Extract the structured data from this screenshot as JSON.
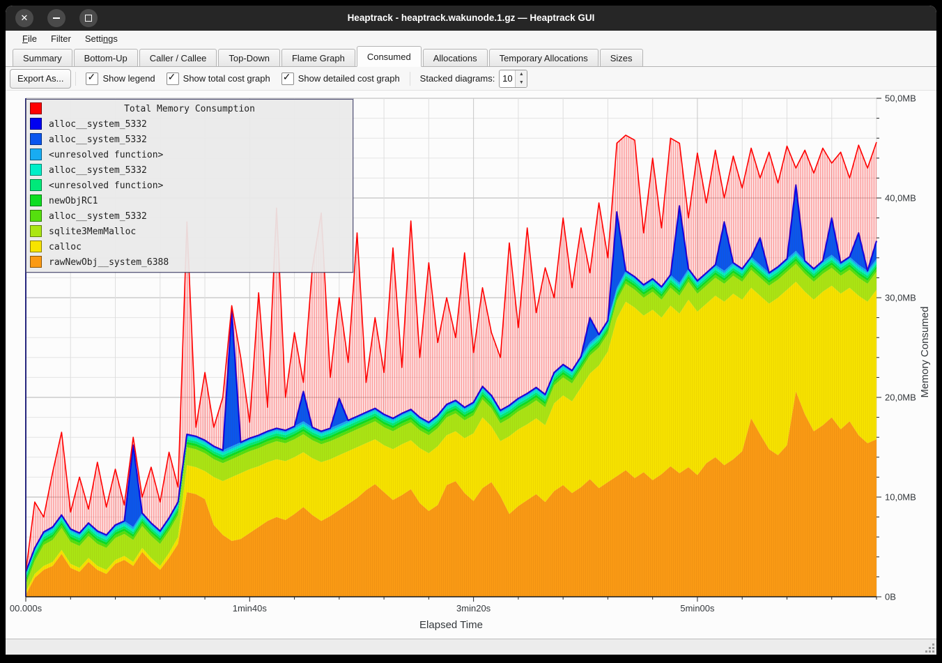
{
  "titlebar": {
    "title": "Heaptrack - heaptrack.wakunode.1.gz — Heaptrack GUI"
  },
  "menu": {
    "items": [
      {
        "pre": "",
        "accel": "F",
        "post": "ile"
      },
      {
        "pre": "Filter",
        "accel": "",
        "post": ""
      },
      {
        "pre": "Setti",
        "accel": "n",
        "post": "gs"
      }
    ]
  },
  "tabs": {
    "active_index": 5,
    "items": [
      {
        "label": "Summary"
      },
      {
        "label": "Bottom-Up"
      },
      {
        "label": "Caller / Callee"
      },
      {
        "label": "Top-Down"
      },
      {
        "label": "Flame Graph"
      },
      {
        "label": "Consumed"
      },
      {
        "label": "Allocations"
      },
      {
        "label": "Temporary Allocations"
      },
      {
        "label": "Sizes"
      }
    ]
  },
  "toolbar": {
    "export_label": "Export As...",
    "checkboxes": [
      {
        "label": "Show legend",
        "checked": true
      },
      {
        "label": "Show total cost graph",
        "checked": true
      },
      {
        "label": "Show detailed cost graph",
        "checked": true
      }
    ],
    "stacked_label": "Stacked diagrams:",
    "stacked_value": "10"
  },
  "statusbar": {
    "text": ""
  },
  "chart_data": {
    "type": "area",
    "stacked": true,
    "title": "Total Memory Consumption",
    "xlabel": "Elapsed Time",
    "ylabel": "Memory Consumed",
    "xlim": [
      0,
      380
    ],
    "ylim": [
      0,
      50
    ],
    "grid": {
      "x_minor_step_s": 20,
      "y_minor_step_mb": 2,
      "x_major_step_s": 100,
      "y_major_step_mb": 10
    },
    "legend_position": "top-left",
    "x_ticks": [
      {
        "pos": 0,
        "label": "00.000s"
      },
      {
        "pos": 100,
        "label": "1min40s"
      },
      {
        "pos": 200,
        "label": "3min20s"
      },
      {
        "pos": 300,
        "label": "5min00s"
      }
    ],
    "y_ticks": [
      {
        "pos": 0,
        "label": "0B"
      },
      {
        "pos": 10,
        "label": "10,0MB"
      },
      {
        "pos": 20,
        "label": "20,0MB"
      },
      {
        "pos": 30,
        "label": "30,0MB"
      },
      {
        "pos": 40,
        "label": "40,0MB"
      },
      {
        "pos": 50,
        "label": "50,0MB"
      }
    ],
    "series": [
      {
        "label": "Total Memory Consumption",
        "color": "#ff0000",
        "role": "total-line"
      },
      {
        "label": "alloc__system_5332",
        "color": "#0000f0",
        "role": "stack"
      },
      {
        "label": "alloc__system_5332",
        "color": "#0a56ee",
        "role": "stack"
      },
      {
        "label": "<unresolved function>",
        "color": "#18acf2",
        "role": "stack"
      },
      {
        "label": "alloc__system_5332",
        "color": "#00eec8",
        "role": "stack"
      },
      {
        "label": "<unresolved function>",
        "color": "#00e97a",
        "role": "stack"
      },
      {
        "label": "newObjRC1",
        "color": "#0ddd22",
        "role": "stack"
      },
      {
        "label": "alloc__system_5332",
        "color": "#55e00e",
        "role": "stack"
      },
      {
        "label": "sqlite3MemMalloc",
        "color": "#abe614",
        "role": "stack"
      },
      {
        "label": "calloc",
        "color": "#f7e400",
        "role": "stack"
      },
      {
        "label": "rawNewObj__system_6388",
        "color": "#fb9a14",
        "role": "stack"
      }
    ],
    "t_seconds": [
      0,
      4,
      8,
      12,
      16,
      20,
      24,
      28,
      32,
      36,
      40,
      44,
      48,
      52,
      56,
      60,
      64,
      68,
      72,
      76,
      80,
      84,
      88,
      92,
      96,
      100,
      104,
      108,
      112,
      116,
      120,
      124,
      128,
      132,
      136,
      140,
      144,
      148,
      152,
      156,
      160,
      164,
      168,
      172,
      176,
      180,
      184,
      188,
      192,
      196,
      200,
      204,
      208,
      212,
      216,
      220,
      224,
      228,
      232,
      236,
      240,
      244,
      248,
      252,
      256,
      260,
      264,
      268,
      272,
      276,
      280,
      284,
      288,
      292,
      296,
      300,
      304,
      308,
      312,
      316,
      320,
      324,
      328,
      332,
      336,
      340,
      344,
      348,
      352,
      356,
      360,
      364,
      368,
      372,
      376,
      380
    ],
    "stack_tops_mb": {
      "rawNewObj": [
        0.2,
        1.9,
        2.7,
        3.1,
        4.3,
        2.9,
        2.5,
        3.5,
        2.7,
        2.3,
        3.3,
        3.7,
        3.1,
        4.5,
        3.5,
        2.7,
        3.9,
        5.3,
        10.5,
        10.3,
        9.8,
        7.2,
        6.2,
        5.6,
        5.8,
        6.4,
        7.0,
        7.6,
        8.0,
        7.7,
        8.3,
        9.0,
        8.2,
        7.6,
        8.1,
        8.7,
        9.3,
        9.9,
        10.7,
        11.3,
        10.5,
        9.7,
        10.2,
        10.8,
        9.4,
        8.6,
        9.2,
        11.2,
        11.6,
        10.4,
        9.6,
        10.9,
        11.5,
        10.1,
        8.3,
        9.1,
        9.7,
        10.3,
        9.5,
        10.6,
        11.2,
        10.4,
        11.0,
        11.8,
        10.9,
        11.5,
        12.1,
        12.7,
        11.9,
        12.5,
        11.7,
        12.3,
        13.1,
        12.4,
        13.0,
        12.2,
        13.4,
        14.0,
        13.2,
        13.8,
        14.6,
        17.9,
        16.3,
        14.8,
        14.2,
        15.2,
        20.6,
        18.3,
        16.6,
        17.2,
        18.0,
        16.8,
        17.6,
        16.2,
        15.4,
        15.8
      ],
      "calloc": [
        0.5,
        2.3,
        3.1,
        3.5,
        4.7,
        3.3,
        2.9,
        3.9,
        3.1,
        2.7,
        3.7,
        4.1,
        3.5,
        4.9,
        3.9,
        3.1,
        4.4,
        6.0,
        13.2,
        13.0,
        12.6,
        12.0,
        11.6,
        12.0,
        12.4,
        12.8,
        13.1,
        13.5,
        13.8,
        13.6,
        14.0,
        14.5,
        13.9,
        13.5,
        13.8,
        14.2,
        14.6,
        15.0,
        15.4,
        15.8,
        15.2,
        14.8,
        15.3,
        15.7,
        14.9,
        14.4,
        15.1,
        16.2,
        16.6,
        15.9,
        16.4,
        18.0,
        17.1,
        15.6,
        16.1,
        16.8,
        17.3,
        17.9,
        17.2,
        19.4,
        20.2,
        19.6,
        21.0,
        22.4,
        23.2,
        24.6,
        27.9,
        29.6,
        29.0,
        28.2,
        28.8,
        28.0,
        29.2,
        28.4,
        29.8,
        28.6,
        29.4,
        30.2,
        29.6,
        30.4,
        29.8,
        31.0,
        30.2,
        29.4,
        30.0,
        30.8,
        31.6,
        30.6,
        29.8,
        30.6,
        31.2,
        30.4,
        31.0,
        30.2,
        29.6,
        30.8
      ],
      "sqlite": [
        1.2,
        3.6,
        5.2,
        5.7,
        6.9,
        5.5,
        5.1,
        6.1,
        5.3,
        4.9,
        5.9,
        6.3,
        5.7,
        7.1,
        6.1,
        5.3,
        6.6,
        8.2,
        15.0,
        14.8,
        14.4,
        13.8,
        13.4,
        13.8,
        14.2,
        14.6,
        14.9,
        15.3,
        15.6,
        15.4,
        15.8,
        16.3,
        15.7,
        15.3,
        15.6,
        16.0,
        16.4,
        16.8,
        17.2,
        17.6,
        17.0,
        16.6,
        17.1,
        17.5,
        16.7,
        16.2,
        16.9,
        18.0,
        18.4,
        17.7,
        18.2,
        19.8,
        18.9,
        17.4,
        17.9,
        18.6,
        19.1,
        19.7,
        19.0,
        21.2,
        22.0,
        21.4,
        22.8,
        24.2,
        25.0,
        26.4,
        29.7,
        31.4,
        30.8,
        30.0,
        30.6,
        29.8,
        31.0,
        30.2,
        31.6,
        30.4,
        31.2,
        32.0,
        31.4,
        32.2,
        31.6,
        32.8,
        32.0,
        31.2,
        31.8,
        32.6,
        33.4,
        32.4,
        31.6,
        32.4,
        33.0,
        32.2,
        32.8,
        32.0,
        31.4,
        32.6
      ],
      "blue": [
        2.5,
        4.9,
        6.5,
        7.0,
        8.2,
        6.8,
        6.4,
        7.4,
        6.6,
        6.2,
        7.2,
        7.6,
        15.2,
        8.4,
        7.4,
        6.6,
        7.9,
        9.5,
        16.3,
        16.1,
        15.7,
        15.1,
        14.7,
        28.7,
        15.5,
        15.9,
        16.2,
        16.6,
        16.9,
        16.7,
        17.1,
        20.6,
        17.0,
        16.6,
        16.9,
        19.9,
        17.7,
        18.1,
        18.5,
        18.9,
        18.3,
        17.9,
        18.4,
        18.8,
        18.0,
        17.5,
        18.2,
        19.3,
        19.7,
        19.0,
        19.5,
        21.1,
        20.2,
        18.7,
        19.2,
        19.9,
        20.4,
        21.0,
        20.3,
        22.5,
        23.3,
        22.7,
        24.1,
        28.0,
        26.3,
        27.7,
        38.6,
        32.7,
        32.1,
        31.3,
        31.9,
        31.1,
        32.3,
        39.2,
        32.9,
        31.7,
        32.5,
        33.3,
        37.6,
        33.5,
        32.9,
        34.1,
        36.0,
        32.5,
        33.1,
        33.9,
        41.3,
        33.7,
        32.9,
        33.7,
        38.0,
        33.5,
        34.1,
        36.5,
        32.7,
        35.7
      ]
    },
    "total_mb": [
      2.5,
      9.5,
      8.0,
      12.5,
      16.5,
      8.5,
      12.0,
      8.8,
      13.5,
      9.0,
      12.8,
      9.2,
      16.0,
      10.0,
      13.0,
      9.5,
      14.5,
      11.0,
      37.6,
      17.0,
      22.5,
      17.0,
      20.0,
      29.2,
      24.0,
      17.5,
      30.5,
      19.0,
      39.0,
      20.0,
      26.5,
      21.5,
      33.0,
      38.5,
      22.0,
      30.0,
      23.5,
      36.5,
      21.5,
      28.0,
      22.5,
      35.0,
      23.0,
      37.7,
      24.0,
      33.5,
      25.5,
      30.0,
      26.0,
      34.5,
      24.5,
      31.0,
      26.5,
      24.0,
      35.5,
      27.0,
      37.0,
      28.5,
      33.0,
      30.0,
      38.0,
      31.0,
      37.0,
      32.5,
      39.5,
      34.0,
      45.5,
      46.3,
      45.8,
      36.5,
      44.0,
      37.0,
      46.0,
      45.5,
      38.0,
      44.5,
      39.5,
      44.8,
      40.0,
      44.2,
      41.0,
      45.0,
      42.0,
      44.6,
      41.5,
      45.2,
      43.0,
      44.8,
      42.5,
      45.0,
      43.5,
      44.6,
      42.0,
      45.3,
      43.0,
      45.6
    ],
    "bands": [
      {
        "name": "rawNewObj__system_6388",
        "color": "#fb9a14",
        "top": "rawNewObj"
      },
      {
        "name": "calloc",
        "color": "#f7e400",
        "top": "calloc"
      },
      {
        "name": "sqlite3MemMalloc",
        "color": "#abe614",
        "top": "sqlite"
      },
      {
        "name": "alloc__system_5332",
        "color": "#55e00e",
        "thickness": 0.3
      },
      {
        "name": "newObjRC1",
        "color": "#0ddd22",
        "thickness": 0.25
      },
      {
        "name": "<unresolved function>",
        "color": "#00e97a",
        "thickness": 0.25
      },
      {
        "name": "alloc__system_5332",
        "color": "#00eec8",
        "thickness": 0.25
      },
      {
        "name": "<unresolved function>",
        "color": "#18acf2",
        "thickness": 0.25
      },
      {
        "name": "alloc__system_5332",
        "color": "#0a56ee",
        "top": "blue",
        "stroke": "#0000f0"
      }
    ]
  }
}
